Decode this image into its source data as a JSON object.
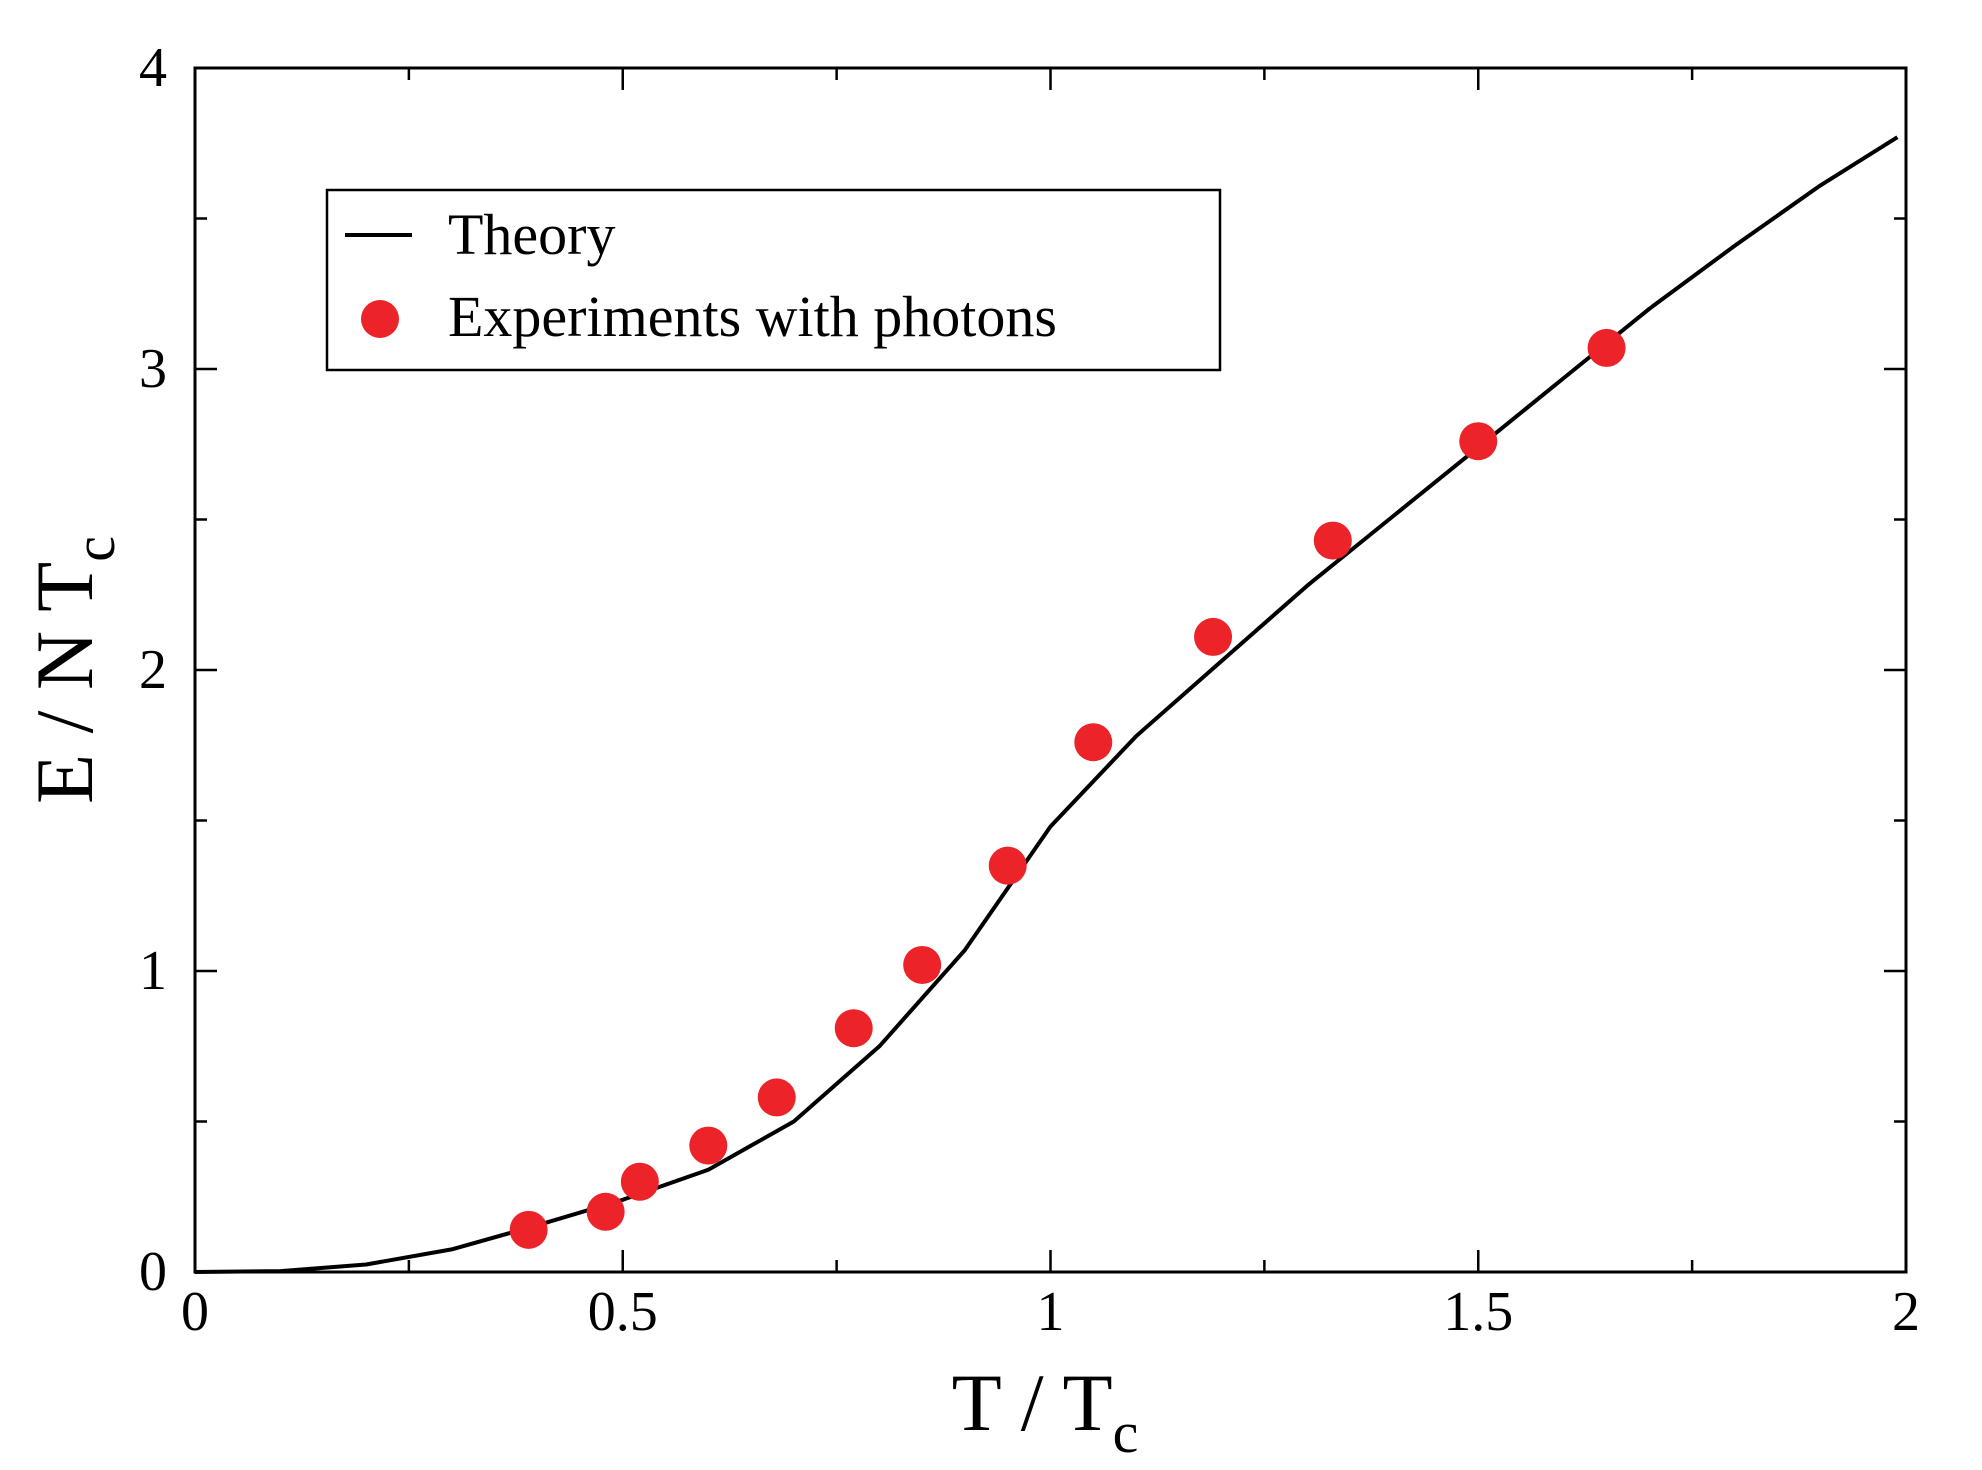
{
  "chart_data": {
    "type": "scatter",
    "title": "",
    "xlabel": {
      "main": "T / T",
      "sub": "c"
    },
    "ylabel": {
      "main": "E / N T",
      "sub": "c"
    },
    "xlim": [
      0,
      2
    ],
    "ylim": [
      0,
      4
    ],
    "x_ticks": [
      {
        "value": 0,
        "label": "0"
      },
      {
        "value": 0.5,
        "label": "0.5"
      },
      {
        "value": 1,
        "label": "1"
      },
      {
        "value": 1.5,
        "label": "1.5"
      },
      {
        "value": 2,
        "label": "2"
      }
    ],
    "y_ticks": [
      {
        "value": 0,
        "label": "0"
      },
      {
        "value": 1,
        "label": "1"
      },
      {
        "value": 2,
        "label": "2"
      },
      {
        "value": 3,
        "label": "3"
      },
      {
        "value": 4,
        "label": "4"
      }
    ],
    "x_minor_step": 0.25,
    "y_minor_step": 0.5,
    "grid": false,
    "legend_position": "top-left",
    "series": [
      {
        "name": "Theory",
        "kind": "line",
        "color": "#000000",
        "x": [
          0,
          0.1,
          0.2,
          0.3,
          0.4,
          0.5,
          0.6,
          0.7,
          0.8,
          0.9,
          1.0,
          1.1,
          1.2,
          1.3,
          1.4,
          1.5,
          1.6,
          1.7,
          1.8,
          1.9,
          1.99
        ],
        "y": [
          0,
          0.003,
          0.025,
          0.075,
          0.155,
          0.24,
          0.34,
          0.5,
          0.75,
          1.07,
          1.48,
          1.78,
          2.03,
          2.28,
          2.51,
          2.74,
          2.97,
          3.2,
          3.41,
          3.61,
          3.77
        ]
      },
      {
        "name": "Experiments with photons",
        "kind": "scatter",
        "color": "#ec2329",
        "x": [
          0.39,
          0.48,
          0.52,
          0.6,
          0.68,
          0.77,
          0.85,
          0.95,
          1.05,
          1.19,
          1.33,
          1.5,
          1.65
        ],
        "y": [
          0.14,
          0.2,
          0.3,
          0.42,
          0.58,
          0.81,
          1.02,
          1.35,
          1.76,
          2.11,
          2.43,
          2.76,
          3.07
        ]
      }
    ]
  }
}
